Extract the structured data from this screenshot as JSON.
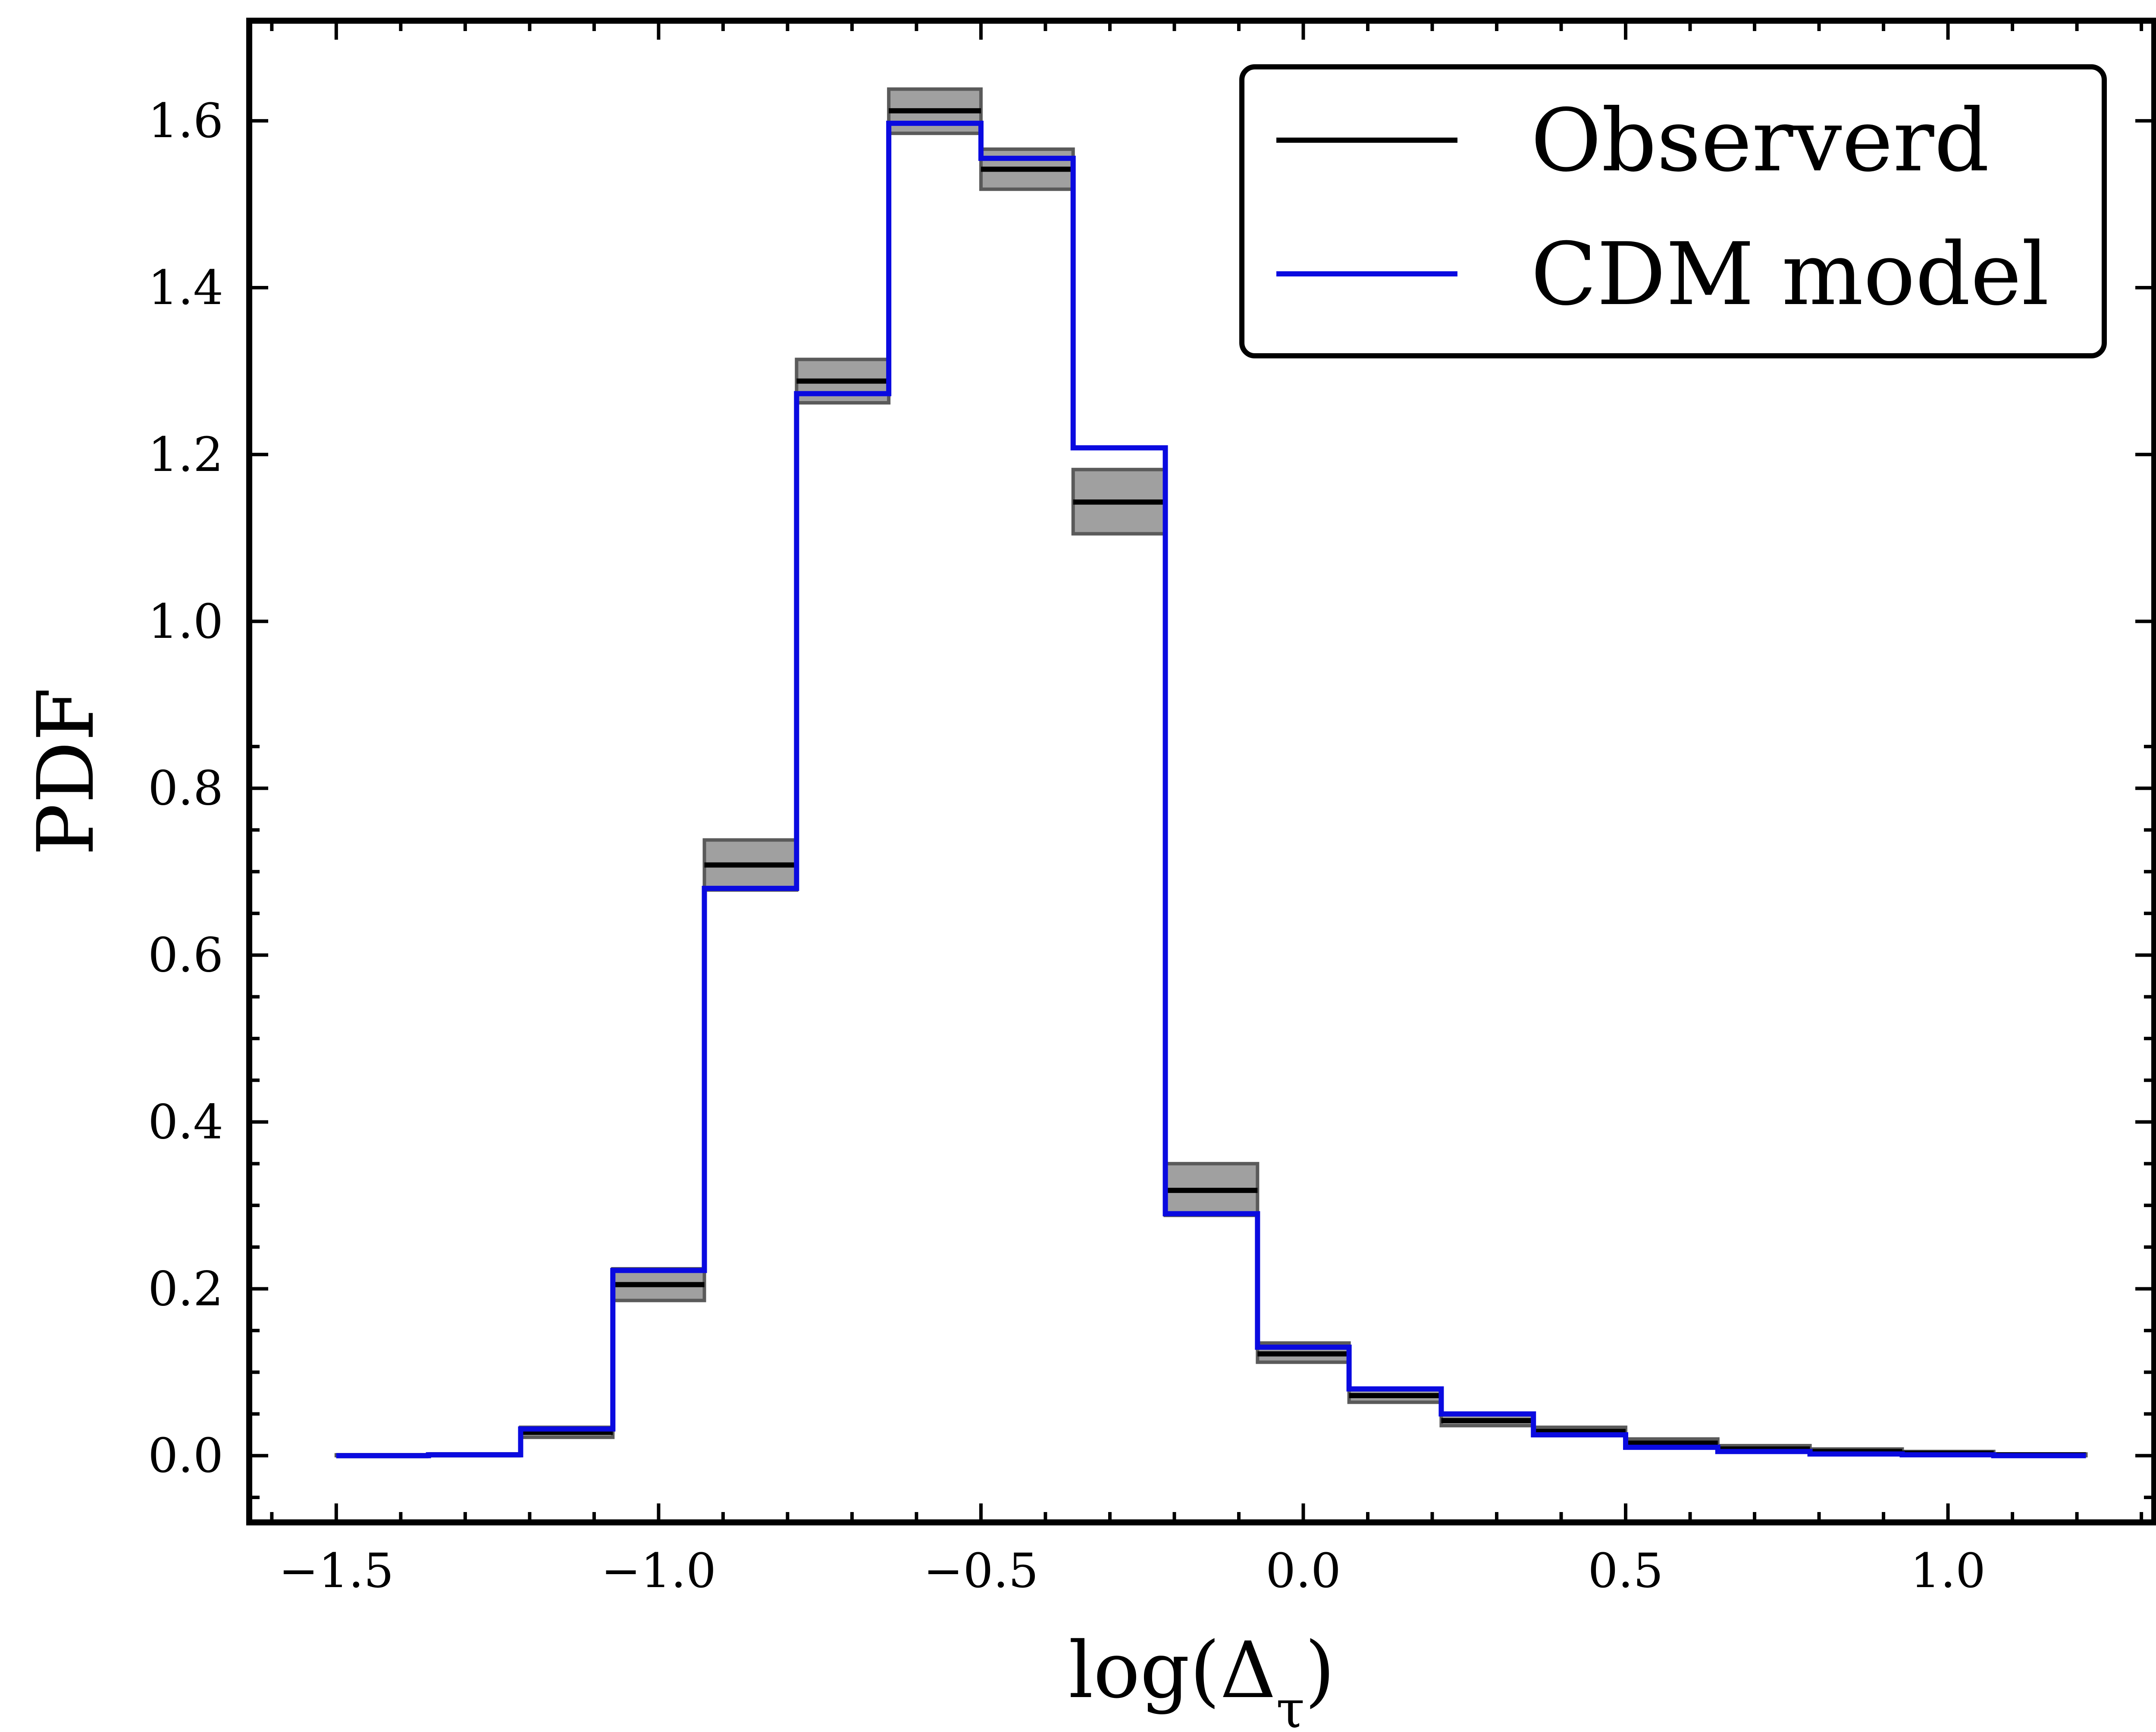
{
  "chart_data": {
    "type": "line",
    "step": "post",
    "x_edges": [
      -1.5,
      -1.357,
      -1.214,
      -1.071,
      -0.929,
      -0.786,
      -0.643,
      -0.5,
      -0.357,
      -0.214,
      -0.071,
      0.071,
      0.214,
      0.357,
      0.5,
      0.643,
      0.786,
      0.929,
      1.071,
      1.214
    ],
    "series": [
      {
        "name": "Observerd",
        "color": "#000000",
        "values": [
          0.0,
          0.001,
          0.028,
          0.205,
          0.708,
          1.288,
          1.612,
          1.542,
          1.143,
          0.318,
          0.122,
          0.072,
          0.042,
          0.029,
          0.015,
          0.008,
          0.005,
          0.003,
          0.001
        ],
        "band_low": [
          0.0,
          0.0,
          0.022,
          0.186,
          0.678,
          1.262,
          1.585,
          1.518,
          1.105,
          0.288,
          0.112,
          0.064,
          0.036,
          0.024,
          0.01,
          0.004,
          0.002,
          0.001,
          0.0
        ],
        "band_high": [
          0.001,
          0.002,
          0.034,
          0.224,
          0.738,
          1.314,
          1.638,
          1.566,
          1.182,
          0.35,
          0.135,
          0.08,
          0.05,
          0.034,
          0.02,
          0.012,
          0.008,
          0.005,
          0.002
        ],
        "band_color": "#808080"
      },
      {
        "name": "CDM model",
        "color": "#0a0ae0",
        "values": [
          0.0,
          0.001,
          0.032,
          0.222,
          0.68,
          1.273,
          1.597,
          1.555,
          1.208,
          0.29,
          0.13,
          0.08,
          0.05,
          0.025,
          0.01,
          0.005,
          0.002,
          0.001,
          0.0
        ]
      }
    ],
    "xlabel": "log(Δ_τ)",
    "ylabel": "PDF",
    "xlim": [
      -1.635,
      1.32
    ],
    "ylim": [
      -0.08,
      1.72
    ],
    "xticks": [
      -1.5,
      -1.0,
      -0.5,
      0.0,
      0.5,
      1.0
    ],
    "xtick_labels": [
      "−1.5",
      "−1.0",
      "−0.5",
      "0.0",
      "0.5",
      "1.0"
    ],
    "yticks": [
      0.0,
      0.2,
      0.4,
      0.6,
      0.8,
      1.0,
      1.2,
      1.4,
      1.6
    ],
    "ytick_labels": [
      "0.0",
      "0.2",
      "0.4",
      "0.6",
      "0.8",
      "1.0",
      "1.2",
      "1.4",
      "1.6"
    ],
    "grid": false,
    "legend_position": "top-right"
  }
}
